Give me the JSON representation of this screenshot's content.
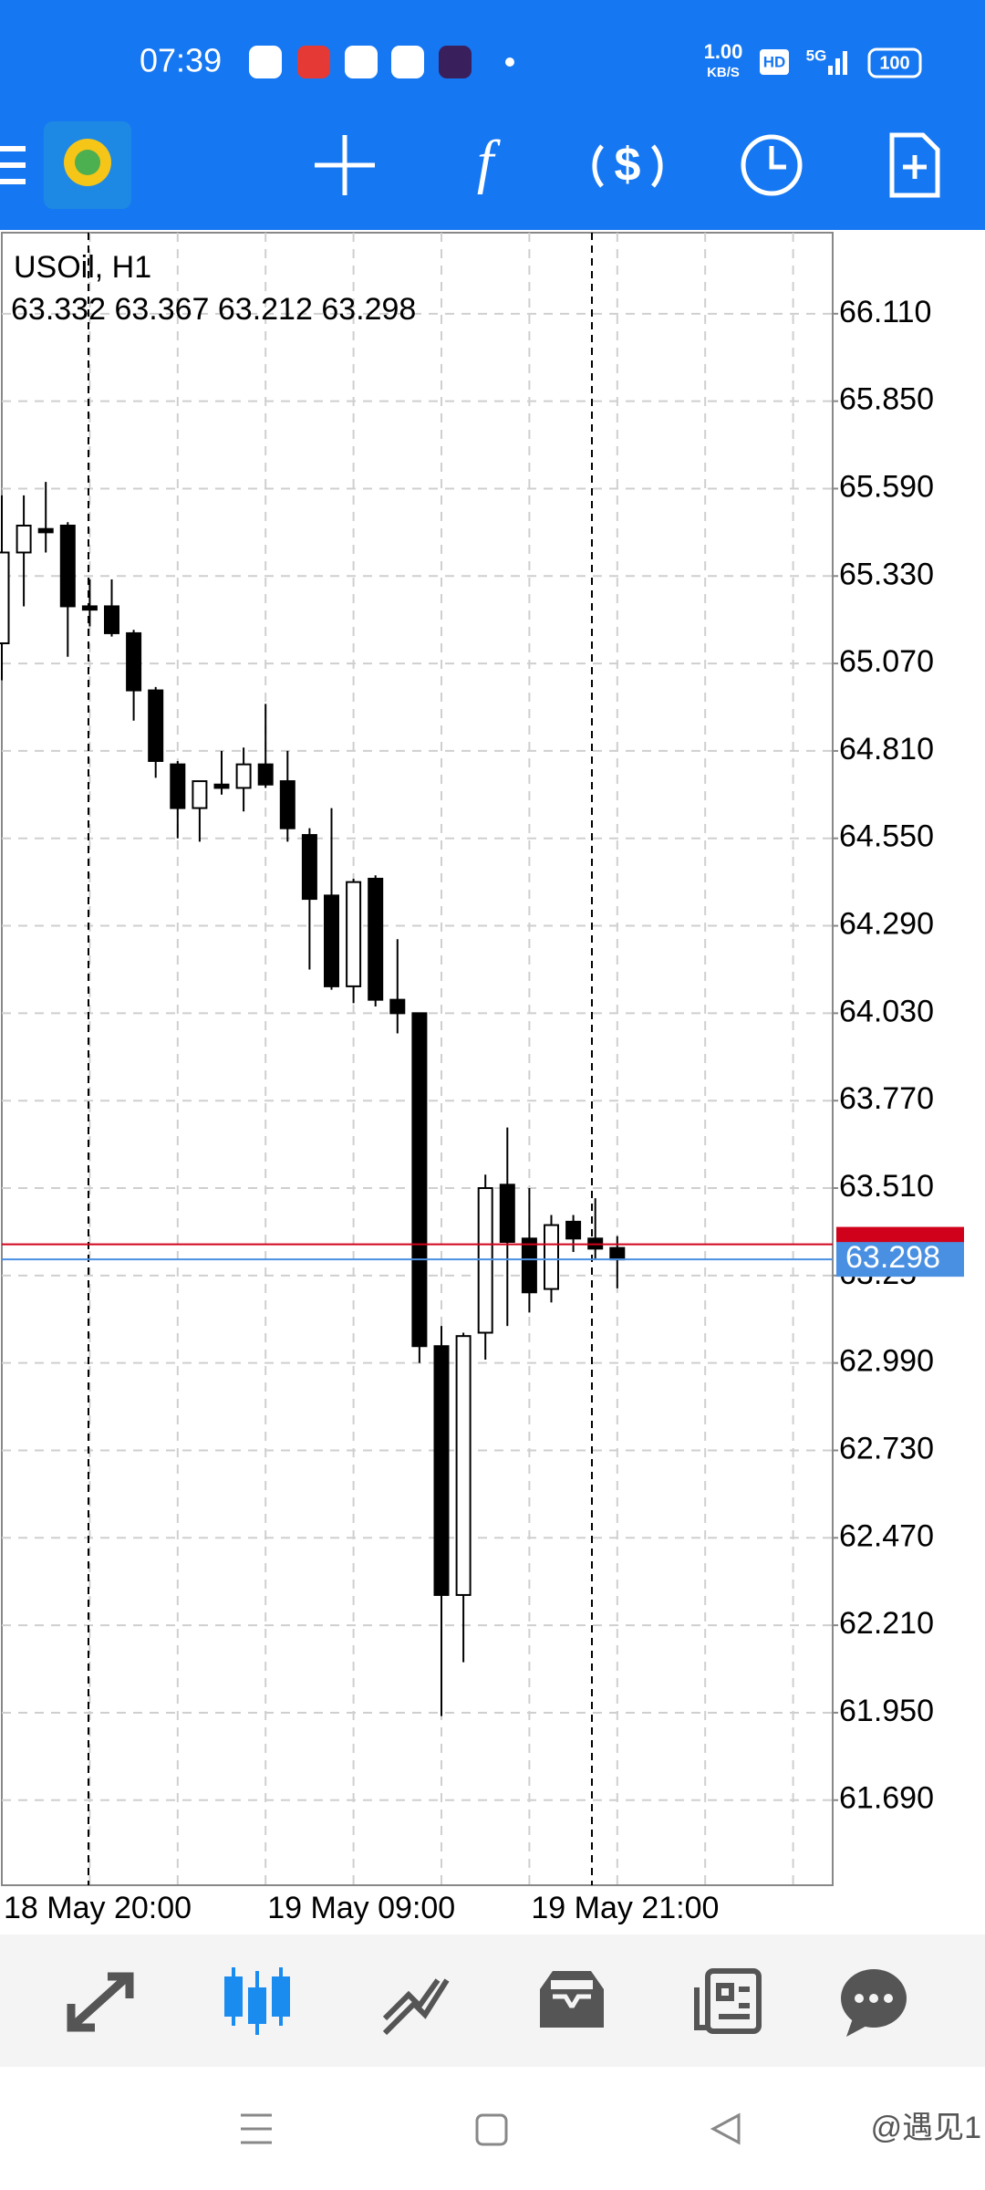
{
  "status_bar": {
    "time": "07:39",
    "speed": "1.00",
    "speed_unit": "KB/S",
    "hd": "HD",
    "network": "5G",
    "battery": "100"
  },
  "watermark": "@遇见1",
  "chart_data": {
    "type": "candlestick",
    "title": "USOil, H1",
    "subtitle": "63.332 63.367 63.212 63.298",
    "categories": [
      "18 May 20:00",
      null,
      null,
      null,
      null,
      null,
      null,
      null,
      null,
      null,
      null,
      null,
      "19 May 09:00",
      null,
      null,
      null,
      null,
      null,
      null,
      null,
      null,
      null,
      null,
      null,
      "19 May 21:00",
      null,
      null,
      null,
      null
    ],
    "open": [
      65.13,
      65.4,
      65.47,
      65.48,
      65.24,
      65.24,
      65.16,
      64.99,
      64.77,
      64.64,
      64.71,
      64.7,
      64.77,
      64.72,
      64.56,
      64.38,
      64.11,
      64.43,
      64.07,
      64.03,
      63.04,
      62.3,
      63.08,
      63.52,
      63.36,
      63.21,
      63.41,
      63.36,
      63.332
    ],
    "high": [
      65.57,
      65.57,
      65.61,
      65.49,
      65.32,
      65.32,
      65.17,
      65.0,
      64.78,
      64.72,
      64.81,
      64.82,
      64.95,
      64.81,
      64.58,
      64.64,
      64.43,
      64.44,
      64.25,
      64.03,
      63.1,
      63.08,
      63.55,
      63.69,
      63.51,
      63.43,
      63.43,
      63.48,
      63.367
    ],
    "low": [
      65.02,
      65.24,
      65.4,
      65.09,
      65.18,
      65.15,
      64.9,
      64.73,
      64.55,
      64.54,
      64.68,
      64.63,
      64.7,
      64.54,
      64.16,
      64.1,
      64.06,
      64.05,
      63.97,
      62.99,
      61.94,
      62.1,
      63.0,
      63.1,
      63.14,
      63.17,
      63.32,
      63.3,
      63.212
    ],
    "close": [
      65.4,
      65.48,
      65.46,
      65.24,
      65.23,
      65.16,
      64.99,
      64.78,
      64.64,
      64.72,
      64.7,
      64.77,
      64.71,
      64.58,
      64.37,
      64.11,
      64.42,
      64.07,
      64.03,
      63.04,
      62.3,
      63.07,
      63.51,
      63.35,
      63.2,
      63.4,
      63.36,
      63.33,
      63.298
    ],
    "up_color": "#ffffff",
    "down_color": "#000000",
    "ylim": [
      61.437,
      66.351
    ],
    "yticks": [
      {
        "value": 66.11,
        "label": "66.110"
      },
      {
        "value": 65.85,
        "label": "65.850"
      },
      {
        "value": 65.59,
        "label": "65.590"
      },
      {
        "value": 65.33,
        "label": "65.330"
      },
      {
        "value": 65.07,
        "label": "65.070"
      },
      {
        "value": 64.81,
        "label": "64.810"
      },
      {
        "value": 64.55,
        "label": "64.550"
      },
      {
        "value": 64.29,
        "label": "64.290"
      },
      {
        "value": 64.03,
        "label": "64.030"
      },
      {
        "value": 63.77,
        "label": "63.770"
      },
      {
        "value": 63.51,
        "label": "63.510"
      },
      63.25,
      {
        "value": 62.99,
        "label": "62.990"
      },
      {
        "value": 62.73,
        "label": "62.730"
      },
      {
        "value": 62.47,
        "label": "62.470"
      },
      {
        "value": 62.21,
        "label": "62.210"
      },
      {
        "value": 61.95,
        "label": "61.950"
      },
      {
        "value": 61.69,
        "label": "61.690"
      }
    ],
    "hidden_ytick": 11,
    "grid": true,
    "ask": 63.343,
    "ask_color": "#d0021b",
    "bid": 63.298,
    "bid_color": "#4a90e2"
  }
}
